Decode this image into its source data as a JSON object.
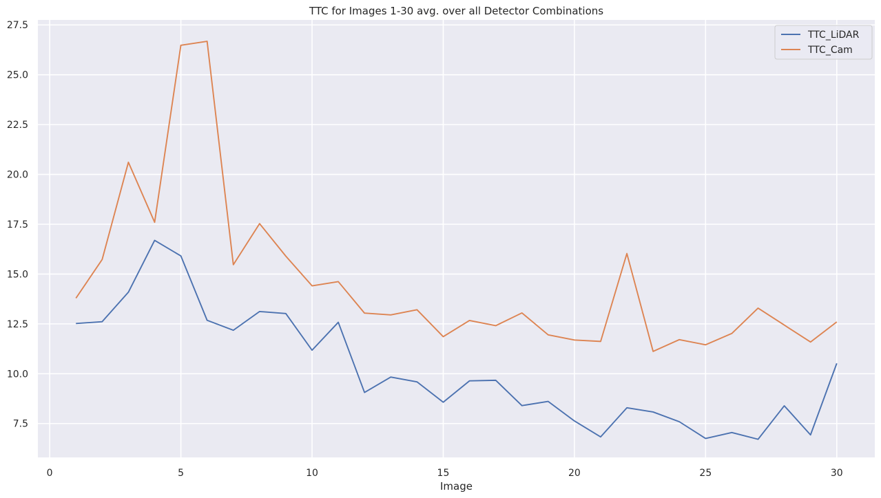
{
  "chart_data": {
    "type": "line",
    "title": "TTC for Images 1-30 avg. over all Detector Combinations",
    "xlabel": "Image",
    "ylabel": "",
    "x": [
      1,
      2,
      3,
      4,
      5,
      6,
      7,
      8,
      9,
      10,
      11,
      12,
      13,
      14,
      15,
      16,
      17,
      18,
      19,
      20,
      21,
      22,
      23,
      24,
      25,
      26,
      27,
      28,
      29,
      30
    ],
    "xlim": [
      -0.45,
      31.45
    ],
    "ylim": [
      5.8,
      27.75
    ],
    "xticks": [
      "0",
      "5",
      "10",
      "15",
      "20",
      "25",
      "30"
    ],
    "yticks": [
      "7.5",
      "10.0",
      "12.5",
      "15.0",
      "17.5",
      "20.0",
      "22.5",
      "25.0",
      "27.5"
    ],
    "grid": true,
    "legend_position": "top-right",
    "series": [
      {
        "name": "TTC_LiDAR",
        "color": "#4c72b0",
        "values": [
          12.52,
          12.61,
          14.09,
          16.69,
          15.91,
          12.68,
          12.18,
          13.12,
          13.02,
          11.18,
          12.58,
          9.06,
          9.83,
          9.59,
          8.57,
          9.64,
          9.67,
          8.4,
          8.61,
          7.63,
          6.83,
          8.29,
          8.08,
          7.59,
          6.75,
          7.05,
          6.71,
          8.39,
          6.93,
          10.52
        ]
      },
      {
        "name": "TTC_Cam",
        "color": "#dd8452",
        "values": [
          13.79,
          15.73,
          20.61,
          17.6,
          26.48,
          26.68,
          15.47,
          17.53,
          15.9,
          14.41,
          14.62,
          13.04,
          12.95,
          13.21,
          11.86,
          12.67,
          12.41,
          13.05,
          11.95,
          11.69,
          11.62,
          16.03,
          11.12,
          11.71,
          11.45,
          12.02,
          13.29,
          12.44,
          11.59,
          12.6
        ]
      }
    ],
    "background_color": "#eaeaf2",
    "grid_color": "#ffffff"
  }
}
